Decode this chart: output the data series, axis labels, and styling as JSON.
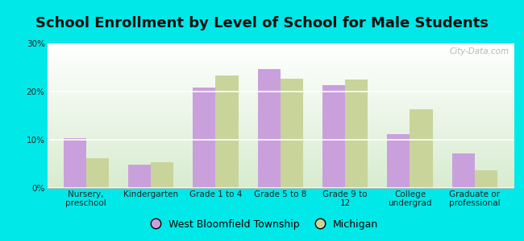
{
  "title": "School Enrollment by Level of School for Male Students",
  "categories": [
    "Nursery,\npreschool",
    "Kindergarten",
    "Grade 1 to 4",
    "Grade 5 to 8",
    "Grade 9 to\n12",
    "College\nundergrad",
    "Graduate or\nprofessional"
  ],
  "west_bloomfield": [
    10.3,
    4.8,
    20.8,
    24.7,
    21.3,
    11.2,
    7.1
  ],
  "michigan": [
    6.2,
    5.3,
    23.3,
    22.7,
    22.5,
    16.4,
    3.7
  ],
  "west_bloomfield_color": "#c9a0dc",
  "michigan_color": "#c8d49a",
  "background_outer": "#00e8e8",
  "background_inner_top": "#ffffff",
  "background_inner_bottom": "#d8ecd0",
  "ylim": [
    0,
    30
  ],
  "yticks": [
    0,
    10,
    20,
    30
  ],
  "legend_labels": [
    "West Bloomfield Township",
    "Michigan"
  ],
  "bar_width": 0.35,
  "title_fontsize": 13,
  "tick_fontsize": 7.5,
  "legend_fontsize": 9
}
